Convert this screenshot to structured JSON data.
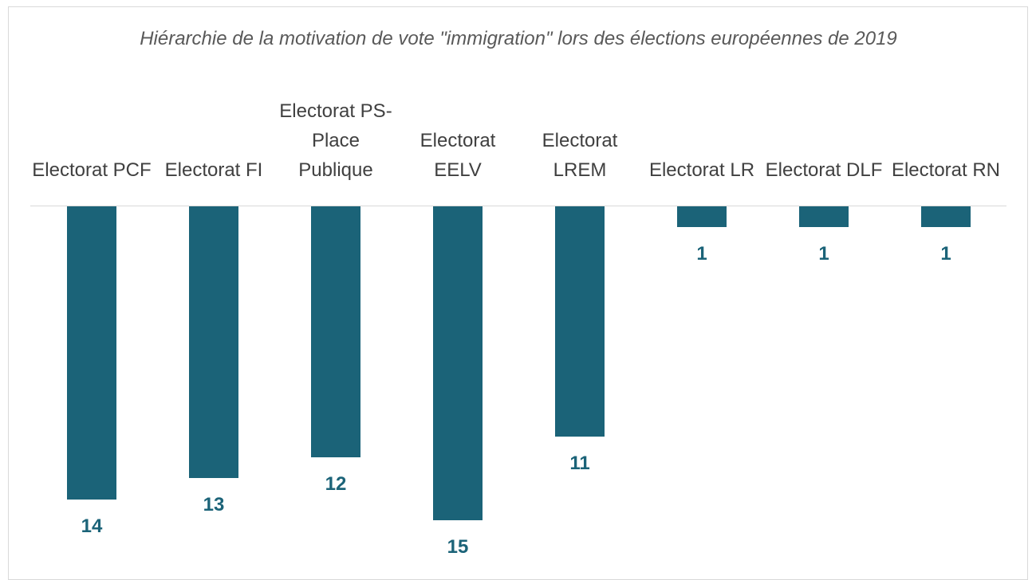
{
  "chart_data": {
    "type": "bar",
    "title": "Hiérarchie de la motivation de vote \"immigration\" lors des élections européennes de 2019",
    "categories": [
      "Electorat PCF",
      "Electorat FI",
      "Electorat PS-Place Publique",
      "Electorat EELV",
      "Electorat LREM",
      "Electorat LR",
      "Electorat DLF",
      "Electorat RN"
    ],
    "values": [
      14,
      13,
      12,
      15,
      11,
      1,
      1,
      1
    ],
    "color": "#1b6378"
  }
}
